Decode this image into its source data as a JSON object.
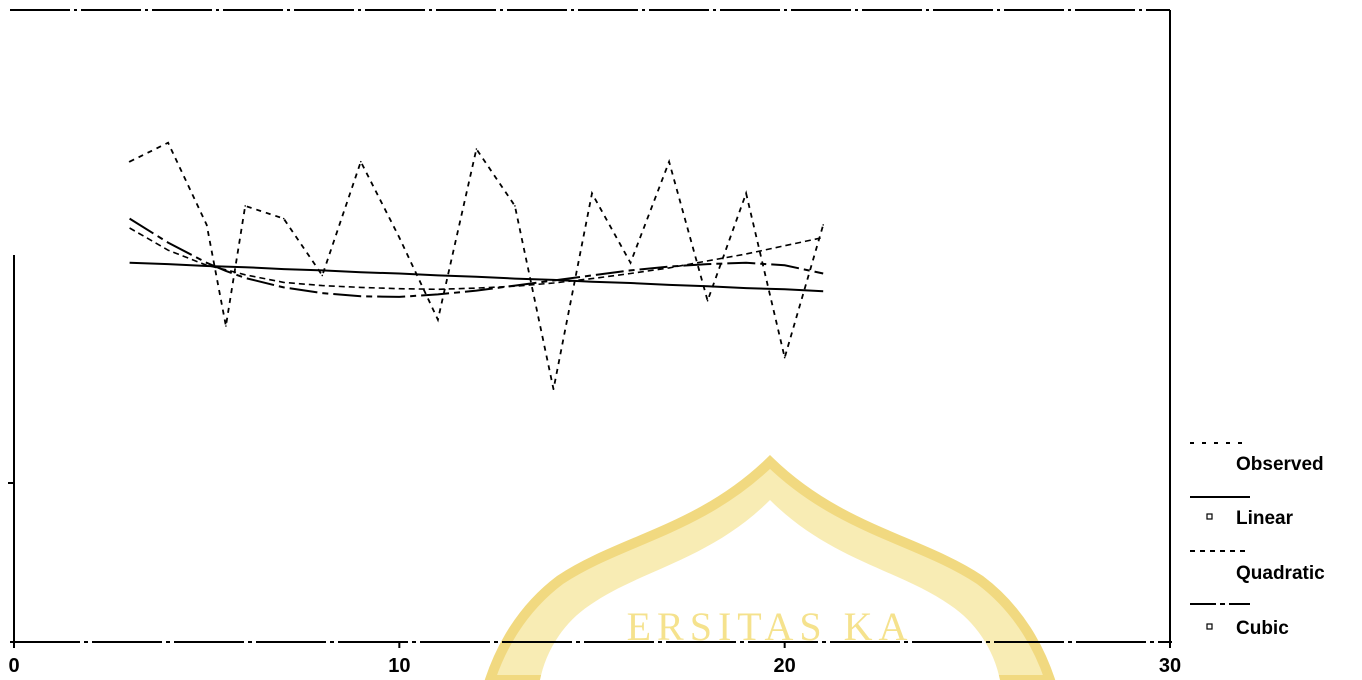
{
  "chart_data": {
    "type": "line",
    "xlim": [
      0,
      30
    ],
    "ylim": [
      0,
      1
    ],
    "xticks": [
      "0",
      "10",
      "20",
      "30"
    ],
    "grid": false,
    "legend_position": "bottom-right",
    "x": [
      3,
      4,
      5,
      5.5,
      6,
      7,
      8,
      9,
      10,
      11,
      12,
      13,
      14,
      15,
      16,
      17,
      18,
      19,
      20,
      21
    ],
    "series": [
      {
        "name": "Observed",
        "values": [
          0.76,
          0.79,
          0.66,
          0.5,
          0.69,
          0.67,
          0.58,
          0.76,
          0.64,
          0.51,
          0.78,
          0.69,
          0.4,
          0.71,
          0.6,
          0.76,
          0.54,
          0.71,
          0.45,
          0.66
        ]
      },
      {
        "name": "Linear",
        "values": [
          0.6,
          0.598,
          0.595,
          0.594,
          0.593,
          0.59,
          0.588,
          0.585,
          0.583,
          0.58,
          0.578,
          0.575,
          0.573,
          0.57,
          0.568,
          0.565,
          0.563,
          0.56,
          0.558,
          0.555
        ]
      },
      {
        "name": "Quadratic",
        "values": [
          0.655,
          0.62,
          0.596,
          0.589,
          0.581,
          0.569,
          0.564,
          0.561,
          0.559,
          0.558,
          0.56,
          0.563,
          0.568,
          0.575,
          0.583,
          0.592,
          0.603,
          0.614,
          0.627,
          0.64
        ]
      },
      {
        "name": "Cubic",
        "values": [
          0.67,
          0.632,
          0.6,
          0.587,
          0.576,
          0.561,
          0.552,
          0.547,
          0.546,
          0.55,
          0.556,
          0.564,
          0.572,
          0.58,
          0.588,
          0.594,
          0.598,
          0.6,
          0.596,
          0.583
        ]
      }
    ]
  },
  "watermark": {
    "text": "ERSITAS KA"
  }
}
